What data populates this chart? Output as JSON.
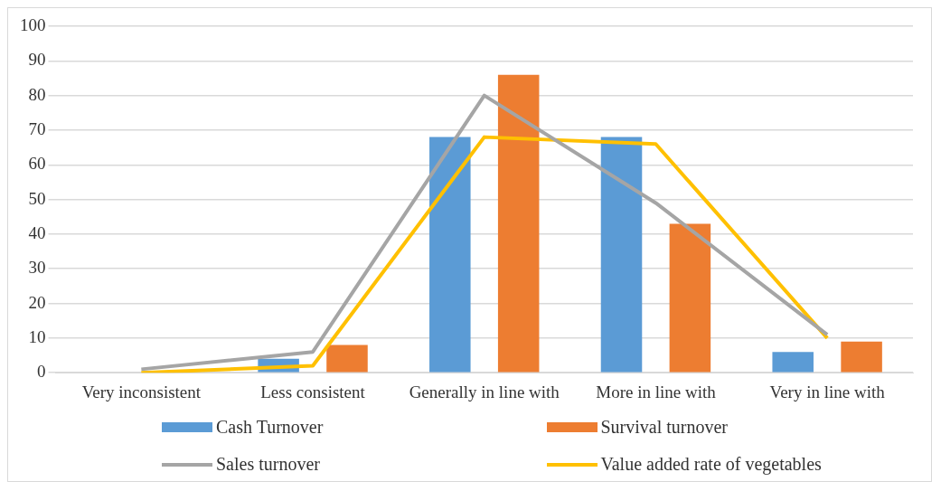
{
  "chart_data": {
    "type": "bar",
    "categories": [
      "Very inconsistent",
      "Less consistent",
      "Generally in line with",
      "More in line with",
      "Very in line with"
    ],
    "series": [
      {
        "name": "Cash Turnover",
        "color": "#5b9bd5",
        "values": [
          0,
          4,
          68,
          68,
          6
        ]
      },
      {
        "name": "Survival turnover",
        "color": "#ed7d31",
        "values": [
          0,
          8,
          86,
          43,
          9
        ]
      },
      {
        "name": "Sales turnover",
        "type": "line",
        "color": "#a5a5a5",
        "values": [
          1,
          6,
          80,
          49,
          11
        ]
      },
      {
        "name": "Value added rate of vegetables",
        "type": "line",
        "color": "#ffc000",
        "values": [
          0,
          2,
          68,
          66,
          10
        ]
      }
    ],
    "ylim": [
      0,
      100
    ],
    "yticks": [
      0,
      10,
      20,
      30,
      40,
      50,
      60,
      70,
      80,
      90,
      100
    ],
    "grid": "y",
    "legend": "bottom"
  }
}
